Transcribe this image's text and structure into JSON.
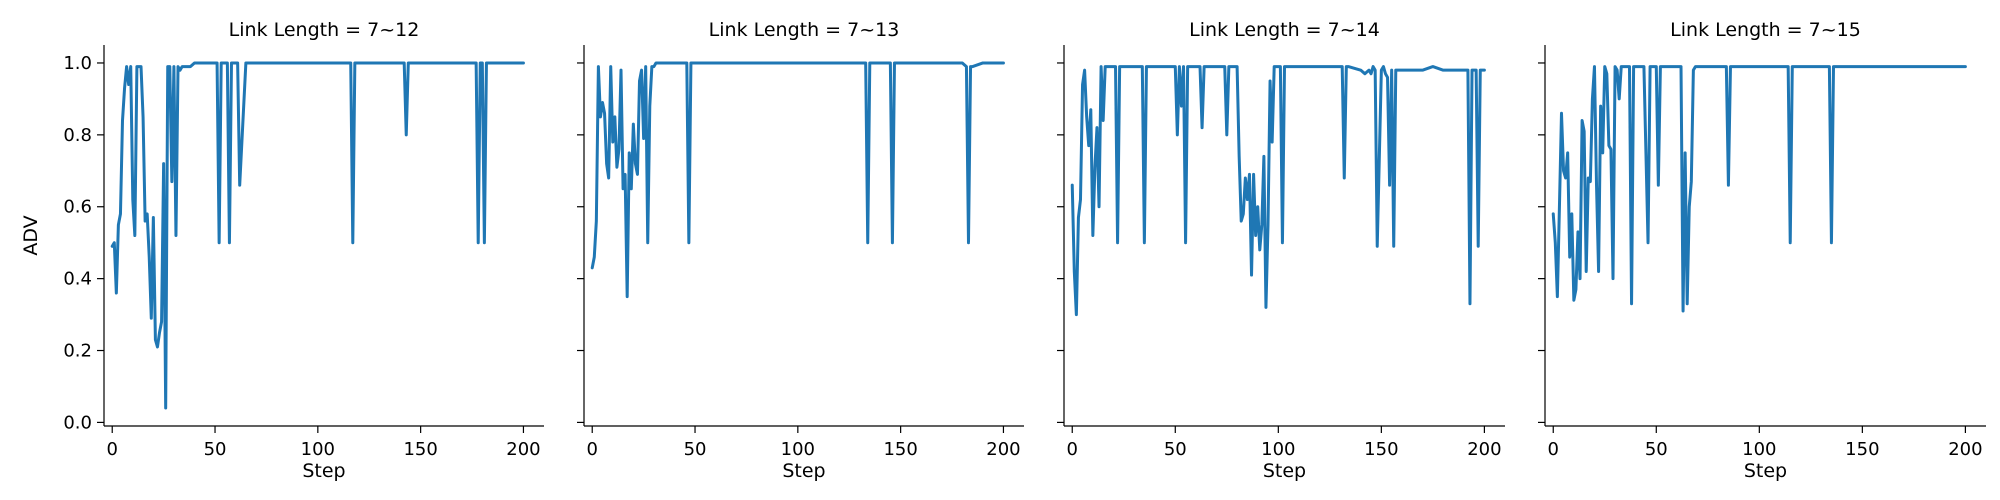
{
  "colors": {
    "series": "#1f77b4",
    "axis": "#000000"
  },
  "chart_data": [
    {
      "type": "line",
      "title": "Link Length = 7~12",
      "xlabel": "Step",
      "ylabel": "ADV",
      "xlim": [
        -4,
        210
      ],
      "ylim": [
        -0.01,
        1.05
      ],
      "xticks": [
        0,
        50,
        100,
        150,
        200
      ],
      "xtick_labels": [
        "0",
        "50",
        "100",
        "150",
        "200"
      ],
      "yticks": [
        0.0,
        0.2,
        0.4,
        0.6,
        0.8,
        1.0
      ],
      "ytick_labels": [
        "0.0",
        "0.2",
        "0.4",
        "0.6",
        "0.8",
        "1.0"
      ],
      "show_yticklabels": true,
      "series": [
        {
          "name": "ADV",
          "x": [
            0,
            1,
            2,
            3,
            4,
            5,
            6,
            7,
            8,
            9,
            10,
            11,
            12,
            13,
            14,
            15,
            16,
            17,
            18,
            19,
            20,
            21,
            22,
            23,
            24,
            25,
            26,
            27,
            28,
            29,
            30,
            31,
            32,
            33,
            34,
            35,
            36,
            37,
            38,
            40,
            42,
            45,
            48,
            51,
            52,
            53,
            54,
            55,
            56,
            57,
            58,
            59,
            60,
            61,
            62,
            65,
            70,
            80,
            90,
            100,
            110,
            116,
            117,
            118,
            119,
            125,
            135,
            142,
            143,
            144,
            145,
            150,
            160,
            170,
            177,
            178,
            179,
            180,
            181,
            182,
            190,
            200
          ],
          "y": [
            0.49,
            0.5,
            0.36,
            0.55,
            0.58,
            0.84,
            0.93,
            0.99,
            0.94,
            0.99,
            0.62,
            0.52,
            0.99,
            0.99,
            0.99,
            0.85,
            0.56,
            0.58,
            0.46,
            0.29,
            0.57,
            0.23,
            0.21,
            0.25,
            0.28,
            0.72,
            0.04,
            0.99,
            0.99,
            0.67,
            0.99,
            0.52,
            0.99,
            0.98,
            0.99,
            0.99,
            0.99,
            0.99,
            0.99,
            1.0,
            1.0,
            1.0,
            1.0,
            1.0,
            0.5,
            1.0,
            1.0,
            1.0,
            1.0,
            0.5,
            1.0,
            1.0,
            1.0,
            1.0,
            0.66,
            1.0,
            1.0,
            1.0,
            1.0,
            1.0,
            1.0,
            1.0,
            0.5,
            1.0,
            1.0,
            1.0,
            1.0,
            1.0,
            0.8,
            1.0,
            1.0,
            1.0,
            1.0,
            1.0,
            1.0,
            0.5,
            1.0,
            1.0,
            0.5,
            1.0,
            1.0,
            1.0
          ]
        }
      ]
    },
    {
      "type": "line",
      "title": "Link Length = 7~13",
      "xlabel": "Step",
      "ylabel": "",
      "xlim": [
        -4,
        210
      ],
      "ylim": [
        -0.01,
        1.05
      ],
      "xticks": [
        0,
        50,
        100,
        150,
        200
      ],
      "xtick_labels": [
        "0",
        "50",
        "100",
        "150",
        "200"
      ],
      "yticks": [
        0.0,
        0.2,
        0.4,
        0.6,
        0.8,
        1.0
      ],
      "ytick_labels": [
        "0.0",
        "0.2",
        "0.4",
        "0.6",
        "0.8",
        "1.0"
      ],
      "show_yticklabels": false,
      "series": [
        {
          "name": "ADV",
          "x": [
            0,
            1,
            2,
            3,
            4,
            5,
            6,
            7,
            8,
            9,
            10,
            11,
            12,
            13,
            14,
            15,
            16,
            17,
            18,
            19,
            20,
            21,
            22,
            23,
            24,
            25,
            26,
            27,
            28,
            29,
            30,
            31,
            32,
            33,
            34,
            35,
            36,
            38,
            40,
            45,
            46,
            47,
            48,
            49,
            50,
            60,
            80,
            100,
            120,
            132,
            133,
            134,
            135,
            136,
            140,
            144,
            145,
            146,
            147,
            148,
            150,
            160,
            170,
            180,
            182,
            183,
            184,
            185,
            190,
            200
          ],
          "y": [
            0.43,
            0.46,
            0.56,
            0.99,
            0.85,
            0.89,
            0.86,
            0.72,
            0.68,
            0.99,
            0.78,
            0.85,
            0.71,
            0.76,
            0.98,
            0.65,
            0.69,
            0.35,
            0.75,
            0.65,
            0.83,
            0.72,
            0.69,
            0.95,
            0.98,
            0.79,
            0.99,
            0.5,
            0.88,
            0.99,
            0.99,
            1.0,
            1.0,
            1.0,
            1.0,
            1.0,
            1.0,
            1.0,
            1.0,
            1.0,
            1.0,
            0.5,
            1.0,
            1.0,
            1.0,
            1.0,
            1.0,
            1.0,
            1.0,
            1.0,
            1.0,
            0.5,
            1.0,
            1.0,
            1.0,
            1.0,
            1.0,
            0.5,
            1.0,
            1.0,
            1.0,
            1.0,
            1.0,
            1.0,
            0.99,
            0.5,
            0.99,
            0.99,
            1.0,
            1.0
          ]
        }
      ]
    },
    {
      "type": "line",
      "title": "Link Length = 7~14",
      "xlabel": "Step",
      "ylabel": "",
      "xlim": [
        -4,
        210
      ],
      "ylim": [
        -0.01,
        1.05
      ],
      "xticks": [
        0,
        50,
        100,
        150,
        200
      ],
      "xtick_labels": [
        "0",
        "50",
        "100",
        "150",
        "200"
      ],
      "yticks": [
        0.0,
        0.2,
        0.4,
        0.6,
        0.8,
        1.0
      ],
      "ytick_labels": [
        "0.0",
        "0.2",
        "0.4",
        "0.6",
        "0.8",
        "1.0"
      ],
      "show_yticklabels": false,
      "series": [
        {
          "name": "ADV",
          "x": [
            0,
            1,
            2,
            3,
            4,
            5,
            6,
            7,
            8,
            9,
            10,
            11,
            12,
            13,
            14,
            15,
            16,
            17,
            18,
            19,
            20,
            21,
            22,
            23,
            24,
            25,
            26,
            27,
            28,
            29,
            30,
            32,
            34,
            35,
            36,
            37,
            38,
            40,
            45,
            49,
            50,
            51,
            52,
            53,
            54,
            55,
            56,
            57,
            58,
            60,
            62,
            63,
            64,
            65,
            70,
            74,
            75,
            76,
            77,
            78,
            79,
            80,
            81,
            82,
            83,
            84,
            85,
            86,
            87,
            88,
            89,
            90,
            91,
            92,
            93,
            94,
            95,
            96,
            97,
            98,
            99,
            100,
            101,
            102,
            103,
            105,
            110,
            120,
            130,
            131,
            132,
            133,
            134,
            140,
            142,
            144,
            145,
            146,
            147,
            148,
            150,
            151,
            152,
            153,
            154,
            155,
            156,
            157,
            158,
            160,
            165,
            170,
            175,
            180,
            185,
            190,
            192,
            193,
            194,
            196,
            197,
            198,
            200
          ],
          "y": [
            0.66,
            0.42,
            0.3,
            0.57,
            0.62,
            0.94,
            0.98,
            0.85,
            0.77,
            0.87,
            0.52,
            0.71,
            0.82,
            0.6,
            0.99,
            0.84,
            0.99,
            0.99,
            0.99,
            0.99,
            0.99,
            0.99,
            0.5,
            0.99,
            0.99,
            0.99,
            0.99,
            0.99,
            0.99,
            0.99,
            0.99,
            0.99,
            0.99,
            0.5,
            0.99,
            0.99,
            0.99,
            0.99,
            0.99,
            0.99,
            0.99,
            0.8,
            0.99,
            0.88,
            0.99,
            0.5,
            0.99,
            0.99,
            0.99,
            0.99,
            0.99,
            0.82,
            0.99,
            0.99,
            0.99,
            0.99,
            0.8,
            0.99,
            0.99,
            0.99,
            0.99,
            0.99,
            0.74,
            0.56,
            0.58,
            0.68,
            0.62,
            0.69,
            0.41,
            0.69,
            0.52,
            0.6,
            0.48,
            0.55,
            0.74,
            0.32,
            0.55,
            0.95,
            0.78,
            0.99,
            0.99,
            0.99,
            0.99,
            0.5,
            0.99,
            0.99,
            0.99,
            0.99,
            0.99,
            0.99,
            0.68,
            0.99,
            0.99,
            0.98,
            0.97,
            0.98,
            0.97,
            0.99,
            0.98,
            0.49,
            0.98,
            0.99,
            0.97,
            0.96,
            0.66,
            0.98,
            0.49,
            0.98,
            0.98,
            0.98,
            0.98,
            0.98,
            0.99,
            0.98,
            0.98,
            0.98,
            0.98,
            0.33,
            0.98,
            0.98,
            0.49,
            0.98,
            0.98
          ]
        }
      ]
    },
    {
      "type": "line",
      "title": "Link Length = 7~15",
      "xlabel": "Step",
      "ylabel": "",
      "xlim": [
        -4,
        210
      ],
      "ylim": [
        -0.01,
        1.05
      ],
      "xticks": [
        0,
        50,
        100,
        150,
        200
      ],
      "xtick_labels": [
        "0",
        "50",
        "100",
        "150",
        "200"
      ],
      "yticks": [
        0.0,
        0.2,
        0.4,
        0.6,
        0.8,
        1.0
      ],
      "ytick_labels": [
        "0.0",
        "0.2",
        "0.4",
        "0.6",
        "0.8",
        "1.0"
      ],
      "show_yticklabels": false,
      "series": [
        {
          "name": "ADV",
          "x": [
            0,
            1,
            2,
            3,
            4,
            5,
            6,
            7,
            8,
            9,
            10,
            11,
            12,
            13,
            14,
            15,
            16,
            17,
            18,
            19,
            20,
            21,
            22,
            23,
            24,
            25,
            26,
            27,
            28,
            29,
            30,
            31,
            32,
            33,
            34,
            35,
            36,
            37,
            38,
            39,
            40,
            42,
            44,
            46,
            47,
            48,
            49,
            50,
            51,
            52,
            53,
            54,
            55,
            56,
            58,
            60,
            62,
            63,
            64,
            65,
            66,
            67,
            68,
            69,
            70,
            75,
            80,
            84,
            85,
            86,
            87,
            90,
            100,
            110,
            114,
            115,
            116,
            120,
            130,
            134,
            135,
            136,
            140,
            160,
            180,
            200
          ],
          "y": [
            0.58,
            0.5,
            0.35,
            0.6,
            0.86,
            0.7,
            0.68,
            0.75,
            0.46,
            0.58,
            0.34,
            0.37,
            0.53,
            0.4,
            0.84,
            0.81,
            0.42,
            0.68,
            0.67,
            0.9,
            0.99,
            0.66,
            0.42,
            0.88,
            0.75,
            0.99,
            0.97,
            0.77,
            0.76,
            0.4,
            0.99,
            0.98,
            0.9,
            0.99,
            0.99,
            0.99,
            0.99,
            0.99,
            0.33,
            0.99,
            0.99,
            0.99,
            0.99,
            0.5,
            0.99,
            0.99,
            0.99,
            0.99,
            0.66,
            0.99,
            0.99,
            0.99,
            0.99,
            0.99,
            0.99,
            0.99,
            0.99,
            0.31,
            0.75,
            0.33,
            0.6,
            0.67,
            0.98,
            0.99,
            0.99,
            0.99,
            0.99,
            0.99,
            0.66,
            0.99,
            0.99,
            0.99,
            0.99,
            0.99,
            0.99,
            0.5,
            0.99,
            0.99,
            0.99,
            0.99,
            0.5,
            0.99,
            0.99,
            0.99,
            0.99,
            0.99
          ]
        }
      ]
    }
  ]
}
